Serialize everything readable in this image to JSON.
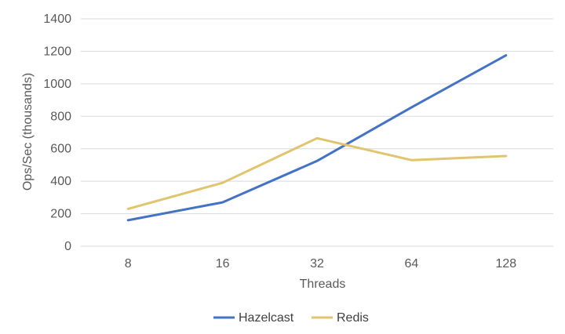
{
  "chart_data": {
    "type": "line",
    "categories": [
      "8",
      "16",
      "32",
      "64",
      "128"
    ],
    "series": [
      {
        "name": "Hazelcast",
        "values": [
          160,
          270,
          525,
          855,
          1175
        ],
        "color": "#4472c4"
      },
      {
        "name": "Redis",
        "values": [
          230,
          390,
          665,
          530,
          555
        ],
        "color": "#e0c46e"
      }
    ],
    "xlabel": "Threads",
    "ylabel": "Ops/Sec (thousands)",
    "ylim": [
      0,
      1400
    ],
    "yticks": [
      0,
      200,
      400,
      600,
      800,
      1000,
      1200,
      1400
    ],
    "grid": true,
    "legend_position": "bottom"
  }
}
